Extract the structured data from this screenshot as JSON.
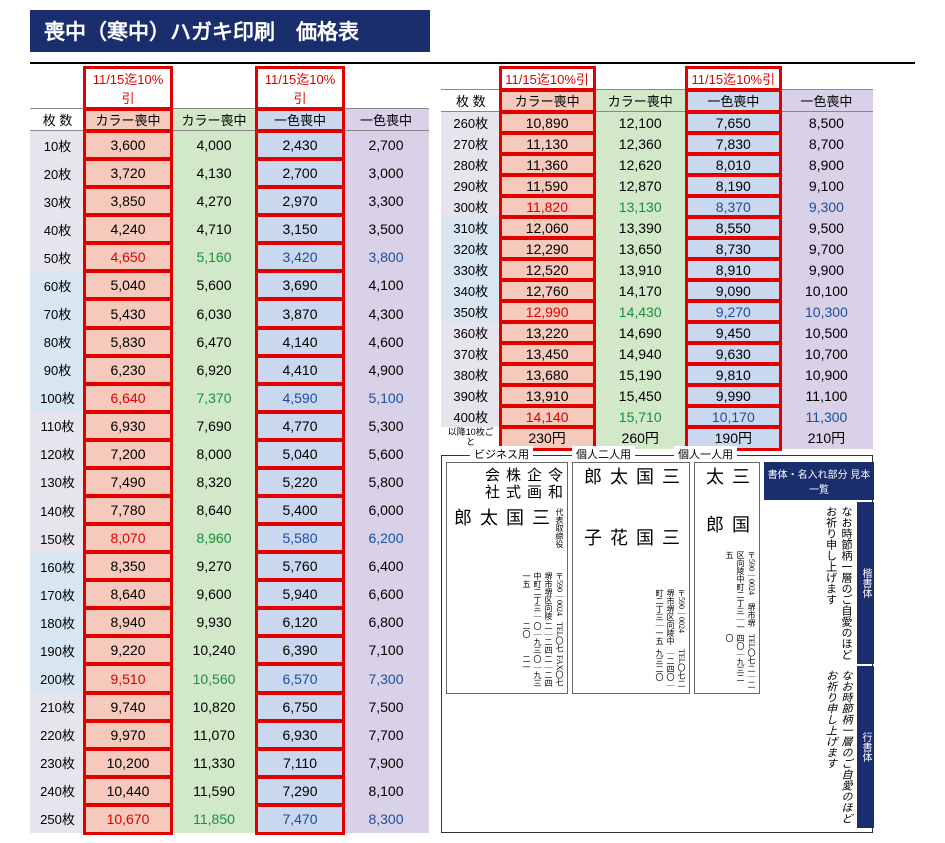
{
  "title": "喪中（寒中）ハガキ印刷　価格表",
  "discount_label": "11/15迄10%引",
  "headers": {
    "qty": "枚 数",
    "color_mourning": "カラー喪中",
    "mono_mourning": "一色喪中"
  },
  "per10_label": "以降10枚ごと",
  "per10": {
    "c1": "230円",
    "c2": "260円",
    "c3": "190円",
    "c4": "210円"
  },
  "left_rows": [
    {
      "q": "10枚",
      "c1": "3,600",
      "c2": "4,000",
      "c3": "2,430",
      "c4": "2,700"
    },
    {
      "q": "20枚",
      "c1": "3,720",
      "c2": "4,130",
      "c3": "2,700",
      "c4": "3,000"
    },
    {
      "q": "30枚",
      "c1": "3,850",
      "c2": "4,270",
      "c3": "2,970",
      "c4": "3,300"
    },
    {
      "q": "40枚",
      "c1": "4,240",
      "c2": "4,710",
      "c3": "3,150",
      "c4": "3,500"
    },
    {
      "q": "50枚",
      "c1": "4,650",
      "c2": "5,160",
      "c3": "3,420",
      "c4": "3,800",
      "hi": true
    },
    {
      "q": "60枚",
      "c1": "5,040",
      "c2": "5,600",
      "c3": "3,690",
      "c4": "4,100"
    },
    {
      "q": "70枚",
      "c1": "5,430",
      "c2": "6,030",
      "c3": "3,870",
      "c4": "4,300"
    },
    {
      "q": "80枚",
      "c1": "5,830",
      "c2": "6,470",
      "c3": "4,140",
      "c4": "4,600"
    },
    {
      "q": "90枚",
      "c1": "6,230",
      "c2": "6,920",
      "c3": "4,410",
      "c4": "4,900"
    },
    {
      "q": "100枚",
      "c1": "6,640",
      "c2": "7,370",
      "c3": "4,590",
      "c4": "5,100",
      "hi": true
    },
    {
      "q": "110枚",
      "c1": "6,930",
      "c2": "7,690",
      "c3": "4,770",
      "c4": "5,300"
    },
    {
      "q": "120枚",
      "c1": "7,200",
      "c2": "8,000",
      "c3": "5,040",
      "c4": "5,600"
    },
    {
      "q": "130枚",
      "c1": "7,490",
      "c2": "8,320",
      "c3": "5,220",
      "c4": "5,800"
    },
    {
      "q": "140枚",
      "c1": "7,780",
      "c2": "8,640",
      "c3": "5,400",
      "c4": "6,000"
    },
    {
      "q": "150枚",
      "c1": "8,070",
      "c2": "8,960",
      "c3": "5,580",
      "c4": "6,200",
      "hi": true
    },
    {
      "q": "160枚",
      "c1": "8,350",
      "c2": "9,270",
      "c3": "5,760",
      "c4": "6,400"
    },
    {
      "q": "170枚",
      "c1": "8,640",
      "c2": "9,600",
      "c3": "5,940",
      "c4": "6,600"
    },
    {
      "q": "180枚",
      "c1": "8,940",
      "c2": "9,930",
      "c3": "6,120",
      "c4": "6,800"
    },
    {
      "q": "190枚",
      "c1": "9,220",
      "c2": "10,240",
      "c3": "6,390",
      "c4": "7,100"
    },
    {
      "q": "200枚",
      "c1": "9,510",
      "c2": "10,560",
      "c3": "6,570",
      "c4": "7,300",
      "hi": true
    },
    {
      "q": "210枚",
      "c1": "9,740",
      "c2": "10,820",
      "c3": "6,750",
      "c4": "7,500"
    },
    {
      "q": "220枚",
      "c1": "9,970",
      "c2": "11,070",
      "c3": "6,930",
      "c4": "7,700"
    },
    {
      "q": "230枚",
      "c1": "10,200",
      "c2": "11,330",
      "c3": "7,110",
      "c4": "7,900"
    },
    {
      "q": "240枚",
      "c1": "10,440",
      "c2": "11,590",
      "c3": "7,290",
      "c4": "8,100"
    },
    {
      "q": "250枚",
      "c1": "10,670",
      "c2": "11,850",
      "c3": "7,470",
      "c4": "8,300",
      "hi": true
    }
  ],
  "right_rows": [
    {
      "q": "260枚",
      "c1": "10,890",
      "c2": "12,100",
      "c3": "7,650",
      "c4": "8,500"
    },
    {
      "q": "270枚",
      "c1": "11,130",
      "c2": "12,360",
      "c3": "7,830",
      "c4": "8,700"
    },
    {
      "q": "280枚",
      "c1": "11,360",
      "c2": "12,620",
      "c3": "8,010",
      "c4": "8,900"
    },
    {
      "q": "290枚",
      "c1": "11,590",
      "c2": "12,870",
      "c3": "8,190",
      "c4": "9,100"
    },
    {
      "q": "300枚",
      "c1": "11,820",
      "c2": "13,130",
      "c3": "8,370",
      "c4": "9,300",
      "hi": true
    },
    {
      "q": "310枚",
      "c1": "12,060",
      "c2": "13,390",
      "c3": "8,550",
      "c4": "9,500"
    },
    {
      "q": "320枚",
      "c1": "12,290",
      "c2": "13,650",
      "c3": "8,730",
      "c4": "9,700"
    },
    {
      "q": "330枚",
      "c1": "12,520",
      "c2": "13,910",
      "c3": "8,910",
      "c4": "9,900"
    },
    {
      "q": "340枚",
      "c1": "12,760",
      "c2": "14,170",
      "c3": "9,090",
      "c4": "10,100"
    },
    {
      "q": "350枚",
      "c1": "12,990",
      "c2": "14,430",
      "c3": "9,270",
      "c4": "10,300",
      "hi": true
    },
    {
      "q": "360枚",
      "c1": "13,220",
      "c2": "14,690",
      "c3": "9,450",
      "c4": "10,500"
    },
    {
      "q": "370枚",
      "c1": "13,450",
      "c2": "14,940",
      "c3": "9,630",
      "c4": "10,700"
    },
    {
      "q": "380枚",
      "c1": "13,680",
      "c2": "15,190",
      "c3": "9,810",
      "c4": "10,900"
    },
    {
      "q": "390枚",
      "c1": "13,910",
      "c2": "15,450",
      "c3": "9,990",
      "c4": "11,100"
    },
    {
      "q": "400枚",
      "c1": "14,140",
      "c2": "15,710",
      "c3": "10,170",
      "c4": "11,300",
      "hi": true
    }
  ],
  "sample": {
    "header": "書体・名入れ部分 見本一覧",
    "biz": "ビジネス用",
    "two": "個人二人用",
    "one": "個人一人用",
    "addr": "〒590｜0024　堺市堺区向陵中町二丁三｜一五",
    "tel": "TEL〇七二｜二四〇｜九三二〇",
    "fax": "FAX〇七二｜二四〇｜九三二一",
    "company": "令和企画株式会社",
    "role": "代表取締役",
    "name1": "三　国　太　郎",
    "name2": "三　国　花　子",
    "kaisho": "楷書体",
    "gyosho": "行書体",
    "msg1": "なお時節柄一層のご自愛のほど",
    "msg2": "お祈り申し上げます"
  }
}
